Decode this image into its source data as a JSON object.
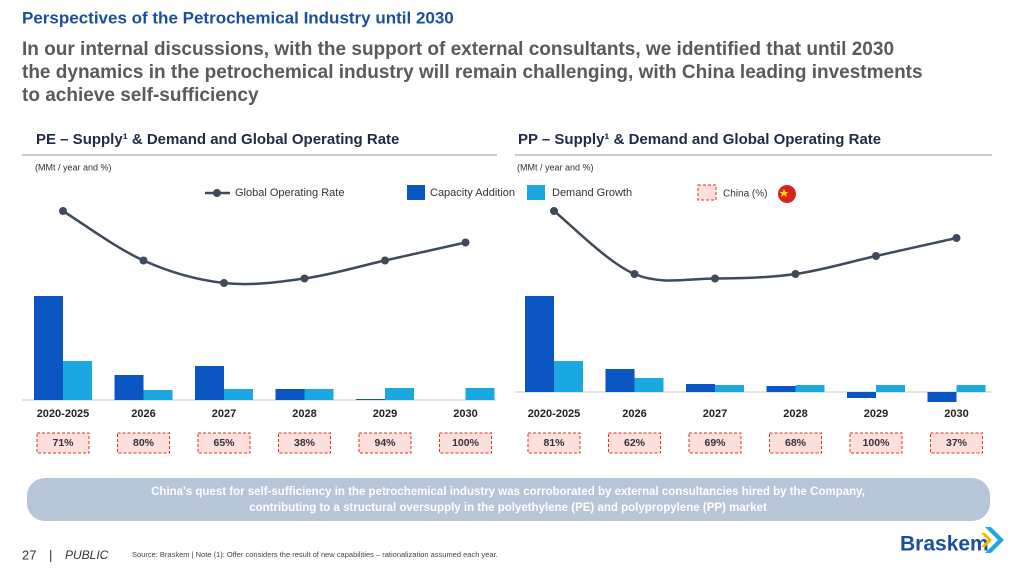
{
  "header": {
    "section_title": "Perspectives of the Petrochemical Industry until 2030",
    "headline": [
      "In our internal discussions, with the support of external consultants, we identified that until 2030",
      "the dynamics in the petrochemical industry will remain challenging, with China leading investments",
      "to achieve self-sufficiency"
    ]
  },
  "chart_data": [
    {
      "type": "bar",
      "title": "PE – Supply¹ & Demand and Global Operating Rate",
      "subtitle": "(MMt / year and %)",
      "categories": [
        "2020-2025",
        "2026",
        "2027",
        "2028",
        "2029",
        "2030"
      ],
      "series": [
        {
          "name": "Capacity Addition",
          "color": "#0a55c2",
          "values": [
            52,
            12.5,
            17,
            5.5,
            0.5,
            0
          ]
        },
        {
          "name": "Demand Growth",
          "color": "#1ba8e0",
          "values": [
            19.5,
            5,
            5.5,
            5.5,
            6,
            6
          ]
        },
        {
          "name": "Global Operating Rate",
          "type": "line",
          "color": "#3f4a5a",
          "values": [
            88,
            82.5,
            80,
            80.5,
            82.5,
            84.5
          ]
        }
      ],
      "china": {
        "name": "China (%)",
        "values": [
          71,
          80,
          65,
          38,
          94,
          100
        ],
        "value_labels": [
          "71%",
          "80%",
          "65%",
          "38%",
          "94%",
          "100%"
        ]
      }
    },
    {
      "type": "bar",
      "title": "PP – Supply¹ & Demand and Global Operating Rate",
      "subtitle": "(MMt / year and %)",
      "categories": [
        "2020-2025",
        "2026",
        "2027",
        "2028",
        "2029",
        "2030"
      ],
      "series": [
        {
          "name": "Capacity Addition",
          "color": "#0a55c2",
          "values": [
            48,
            11.5,
            4,
            3,
            -3,
            -5
          ]
        },
        {
          "name": "Demand Growth",
          "color": "#1ba8e0",
          "values": [
            15.5,
            7,
            3.5,
            3.5,
            3.5,
            3.5
          ]
        },
        {
          "name": "Global Operating Rate",
          "type": "line",
          "color": "#3f4a5a",
          "values": [
            88,
            81,
            80.5,
            81,
            83,
            85
          ]
        }
      ],
      "china": {
        "name": "China (%)",
        "values": [
          81,
          62,
          69,
          68,
          100,
          37
        ],
        "value_labels": [
          "81%",
          "62%",
          "69%",
          "68%",
          "100%",
          "37%"
        ]
      }
    }
  ],
  "callout": [
    "China's quest for self-sufficiency in the petrochemical industry was corroborated by external consultancies hired by the Company,",
    "contributing to a structural oversupply in the polyethylene (PE) and polypropylene (PP) market"
  ],
  "footer": {
    "page": "27",
    "separator": "|",
    "classification": "PUBLIC",
    "source": "Source: Braskem | Note (1): Offer considers the result of new capabilities – rationalization assumed each year."
  },
  "logo": "Braskem"
}
